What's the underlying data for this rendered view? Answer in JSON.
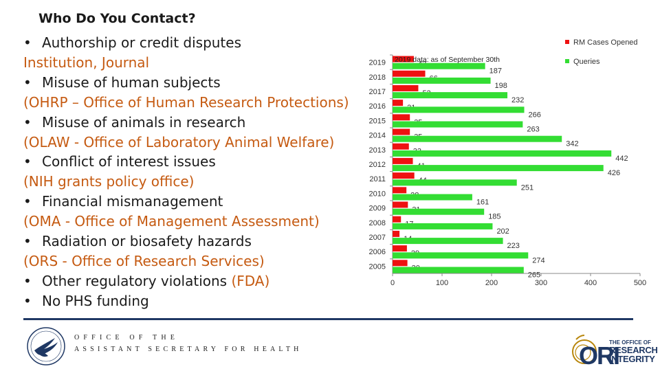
{
  "title": "Who Do You Contact?",
  "contacts": [
    {
      "type": "bullet",
      "text": "Authorship or credit disputes"
    },
    {
      "type": "office",
      "text": "Institution, Journal"
    },
    {
      "type": "bullet",
      "text": "Misuse of human subjects"
    },
    {
      "type": "office",
      "text": "(OHRP – Office of Human Research Protections)"
    },
    {
      "type": "bullet",
      "text": "Misuse of animals in research"
    },
    {
      "type": "office",
      "text": "(OLAW - Office of Laboratory Animal Welfare)"
    },
    {
      "type": "bullet",
      "text": "Conflict of interest issues"
    },
    {
      "type": "office",
      "text": "(NIH grants policy office)"
    },
    {
      "type": "bullet",
      "text": "Financial mismanagement"
    },
    {
      "type": "office",
      "text": "(OMA - Office of Management Assessment)"
    },
    {
      "type": "bullet",
      "text": "Radiation or biosafety hazards"
    },
    {
      "type": "office",
      "text": "(ORS - Office of Research Services)"
    },
    {
      "type": "bullet",
      "text": "Other regulatory violations ",
      "extra": "(FDA)"
    },
    {
      "type": "bullet",
      "text": "No PHS funding"
    }
  ],
  "footer": {
    "oash_line1": "OFFICE OF THE",
    "oash_line2": "ASSISTANT SECRETARY FOR HEALTH",
    "ori_mark": "ORI",
    "ori_line1": "THE OFFICE OF",
    "ori_line2": "RESEARCH",
    "ori_line3": "INTEGRITY"
  },
  "colors": {
    "rm_cases": "#ee1111",
    "queries": "#33dd33",
    "accent_text": "#c55a11",
    "rule": "#1f3864"
  },
  "chart_data": {
    "type": "bar",
    "orientation": "horizontal",
    "categories": [
      "2019",
      "2018",
      "2017",
      "2016",
      "2015",
      "2014",
      "2013",
      "2012",
      "2011",
      "2010",
      "2009",
      "2008",
      "2007",
      "2006",
      "2005"
    ],
    "series": [
      {
        "name": "RM Cases Opened",
        "values": [
          43,
          66,
          52,
          21,
          35,
          35,
          33,
          41,
          44,
          28,
          31,
          17,
          14,
          29,
          30
        ]
      },
      {
        "name": "Queries",
        "values": [
          187,
          198,
          232,
          266,
          263,
          342,
          442,
          426,
          251,
          161,
          185,
          202,
          223,
          274,
          265
        ]
      }
    ],
    "annotation": "2019 data: as of September 30th",
    "xlim": [
      0,
      500
    ],
    "xticks": [
      0,
      100,
      200,
      300,
      400,
      500
    ],
    "legend_position": "top-right",
    "title": "",
    "xlabel": "",
    "ylabel": ""
  }
}
